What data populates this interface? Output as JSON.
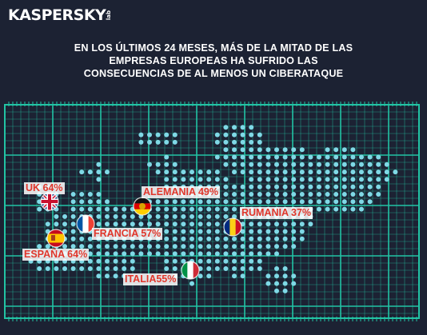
{
  "brand": {
    "logo_text": "KASPERSKY",
    "logo_sub": "lab"
  },
  "headline": [
    "EN LOS ÚLTIMOS 24 MESES, MÁS DE LA MITAD DE LAS",
    "EMPRESAS EUROPEAS HA SUFRIDO LAS",
    "CONSECUENCIAS DE  AL MENOS UN CIBERATAQUE"
  ],
  "colors": {
    "background": "#1c2233",
    "grid": "#22c3a4",
    "dots": "#7fd9e6",
    "label_text": "#e0362b"
  },
  "chart_data": {
    "type": "map",
    "unit": "%",
    "countries": [
      {
        "name": "UK",
        "value": 64,
        "label": "UK  64%",
        "flag": "uk-flag-icon"
      },
      {
        "name": "ALEMANIA",
        "value": 49,
        "label": "ALEMANIA 49%",
        "flag": "germany-flag-icon"
      },
      {
        "name": "RUMANIA",
        "value": 37,
        "label": "RUMANIA  37%",
        "flag": "romania-flag-icon"
      },
      {
        "name": "FRANCIA",
        "value": 57,
        "label": "FRANCIA 57%",
        "flag": "france-flag-icon"
      },
      {
        "name": "ESPAÑA",
        "value": 64,
        "label": "ESPAÑA 64%",
        "flag": "spain-flag-icon"
      },
      {
        "name": "ITALIA",
        "value": 55,
        "label": "ITALIA55%",
        "flag": "italy-flag-icon"
      }
    ]
  }
}
